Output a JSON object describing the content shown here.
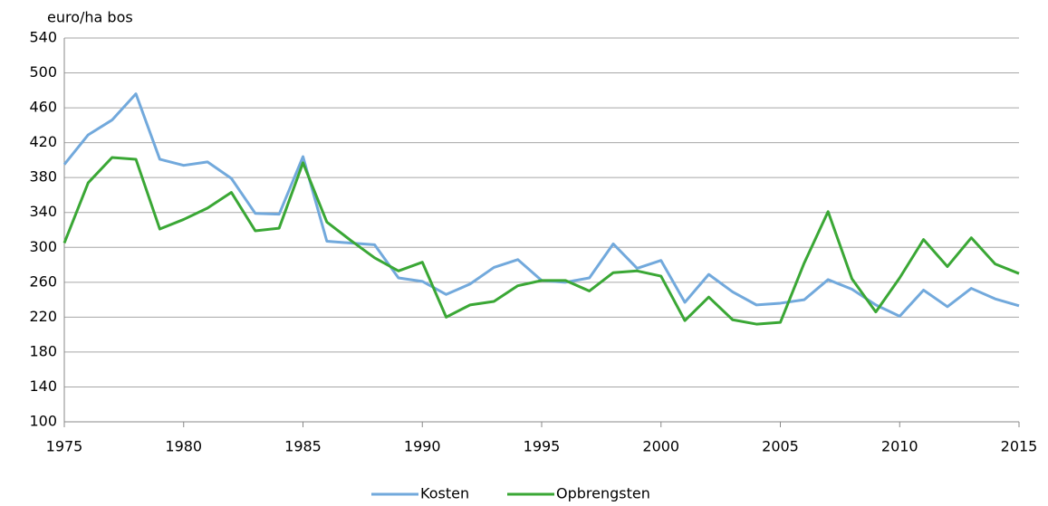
{
  "chart_data": {
    "type": "line",
    "y_label": "euro/ha bos",
    "x": [
      1975,
      1976,
      1977,
      1978,
      1979,
      1980,
      1981,
      1982,
      1983,
      1984,
      1985,
      1986,
      1987,
      1988,
      1989,
      1990,
      1991,
      1992,
      1993,
      1994,
      1995,
      1996,
      1997,
      1998,
      1999,
      2000,
      2001,
      2002,
      2003,
      2004,
      2005,
      2006,
      2007,
      2008,
      2009,
      2010,
      2011,
      2012,
      2013,
      2014,
      2015
    ],
    "series": [
      {
        "name": "Kosten",
        "color": "#72a9dc",
        "values": [
          395,
          429,
          446,
          476,
          401,
          394,
          398,
          379,
          339,
          338,
          404,
          307,
          305,
          303,
          265,
          261,
          246,
          258,
          277,
          286,
          262,
          260,
          265,
          304,
          276,
          285,
          237,
          269,
          249,
          234,
          236,
          240,
          263,
          252,
          234,
          221,
          251,
          232,
          253,
          241,
          233
        ]
      },
      {
        "name": "Opbrengsten",
        "color": "#3aa735",
        "values": [
          305,
          374,
          403,
          401,
          321,
          332,
          345,
          363,
          319,
          322,
          397,
          329,
          308,
          288,
          273,
          283,
          220,
          234,
          238,
          256,
          262,
          262,
          250,
          271,
          273,
          267,
          216,
          243,
          217,
          212,
          214,
          282,
          341,
          264,
          226,
          265,
          309,
          278,
          311,
          281,
          270
        ]
      }
    ],
    "xlim": [
      1975,
      2015
    ],
    "xticks": [
      1975,
      1980,
      1985,
      1990,
      1995,
      2000,
      2005,
      2010,
      2015
    ],
    "ylim": [
      100,
      540
    ],
    "yticks": [
      100,
      140,
      180,
      220,
      260,
      300,
      340,
      380,
      420,
      460,
      500,
      540
    ],
    "grid": true,
    "legend": "bottom"
  }
}
